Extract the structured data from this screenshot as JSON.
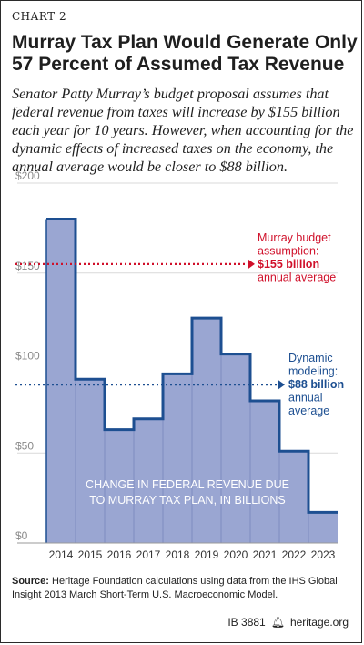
{
  "header": {
    "chart_label": "CHART 2",
    "title_line1": "Murray Tax Plan Would Generate Only",
    "title_line2": "57 Percent of Assumed Tax Revenue",
    "subtitle": "Senator Patty Murray’s budget proposal assumes that federal revenue from taxes will increase by $155 billion each year for 10 years. However, when accounting for the dynamic effects of increased taxes on the economy, the annual average would be closer to $88 billion."
  },
  "chart_data": {
    "type": "area",
    "step": true,
    "categories": [
      "2014",
      "2015",
      "2016",
      "2017",
      "2018",
      "2019",
      "2020",
      "2021",
      "2022",
      "2023"
    ],
    "values": [
      180,
      91,
      63,
      69,
      94,
      125,
      105,
      79,
      51,
      17
    ],
    "ylim": [
      0,
      200
    ],
    "yticks": [
      "$0",
      "$50",
      "$100",
      "$150",
      "$200"
    ],
    "ytick_values": [
      0,
      50,
      100,
      150,
      200
    ],
    "inner_label_line1": "CHANGE IN FEDERAL REVENUE DUE",
    "inner_label_line2": "TO MURRAY TAX PLAN, IN BILLIONS",
    "reference_lines": [
      {
        "value": 155,
        "color": "#d0102a",
        "lines": [
          "Murray budget",
          "assumption:",
          "$155 billion",
          "annual average"
        ],
        "bold_line": 2
      },
      {
        "value": 88,
        "color": "#1d4f91",
        "lines": [
          "Dynamic",
          "modeling:",
          "$88 billion",
          "annual",
          "average"
        ],
        "bold_line": 2
      }
    ],
    "colors": {
      "fill": "#9aa6d2",
      "stroke": "#1d4f91",
      "grid": "#d9d9d9",
      "tick_text": "#8a8a8a"
    }
  },
  "footer": {
    "source_label": "Source:",
    "source_text": " Heritage Foundation calculations using data from the IHS Global Insight 2013 March Short-Term U.S. Macroeconomic Model.",
    "ib_number": "IB 3881",
    "bell_icon": "bell-icon",
    "site": "heritage.org"
  }
}
